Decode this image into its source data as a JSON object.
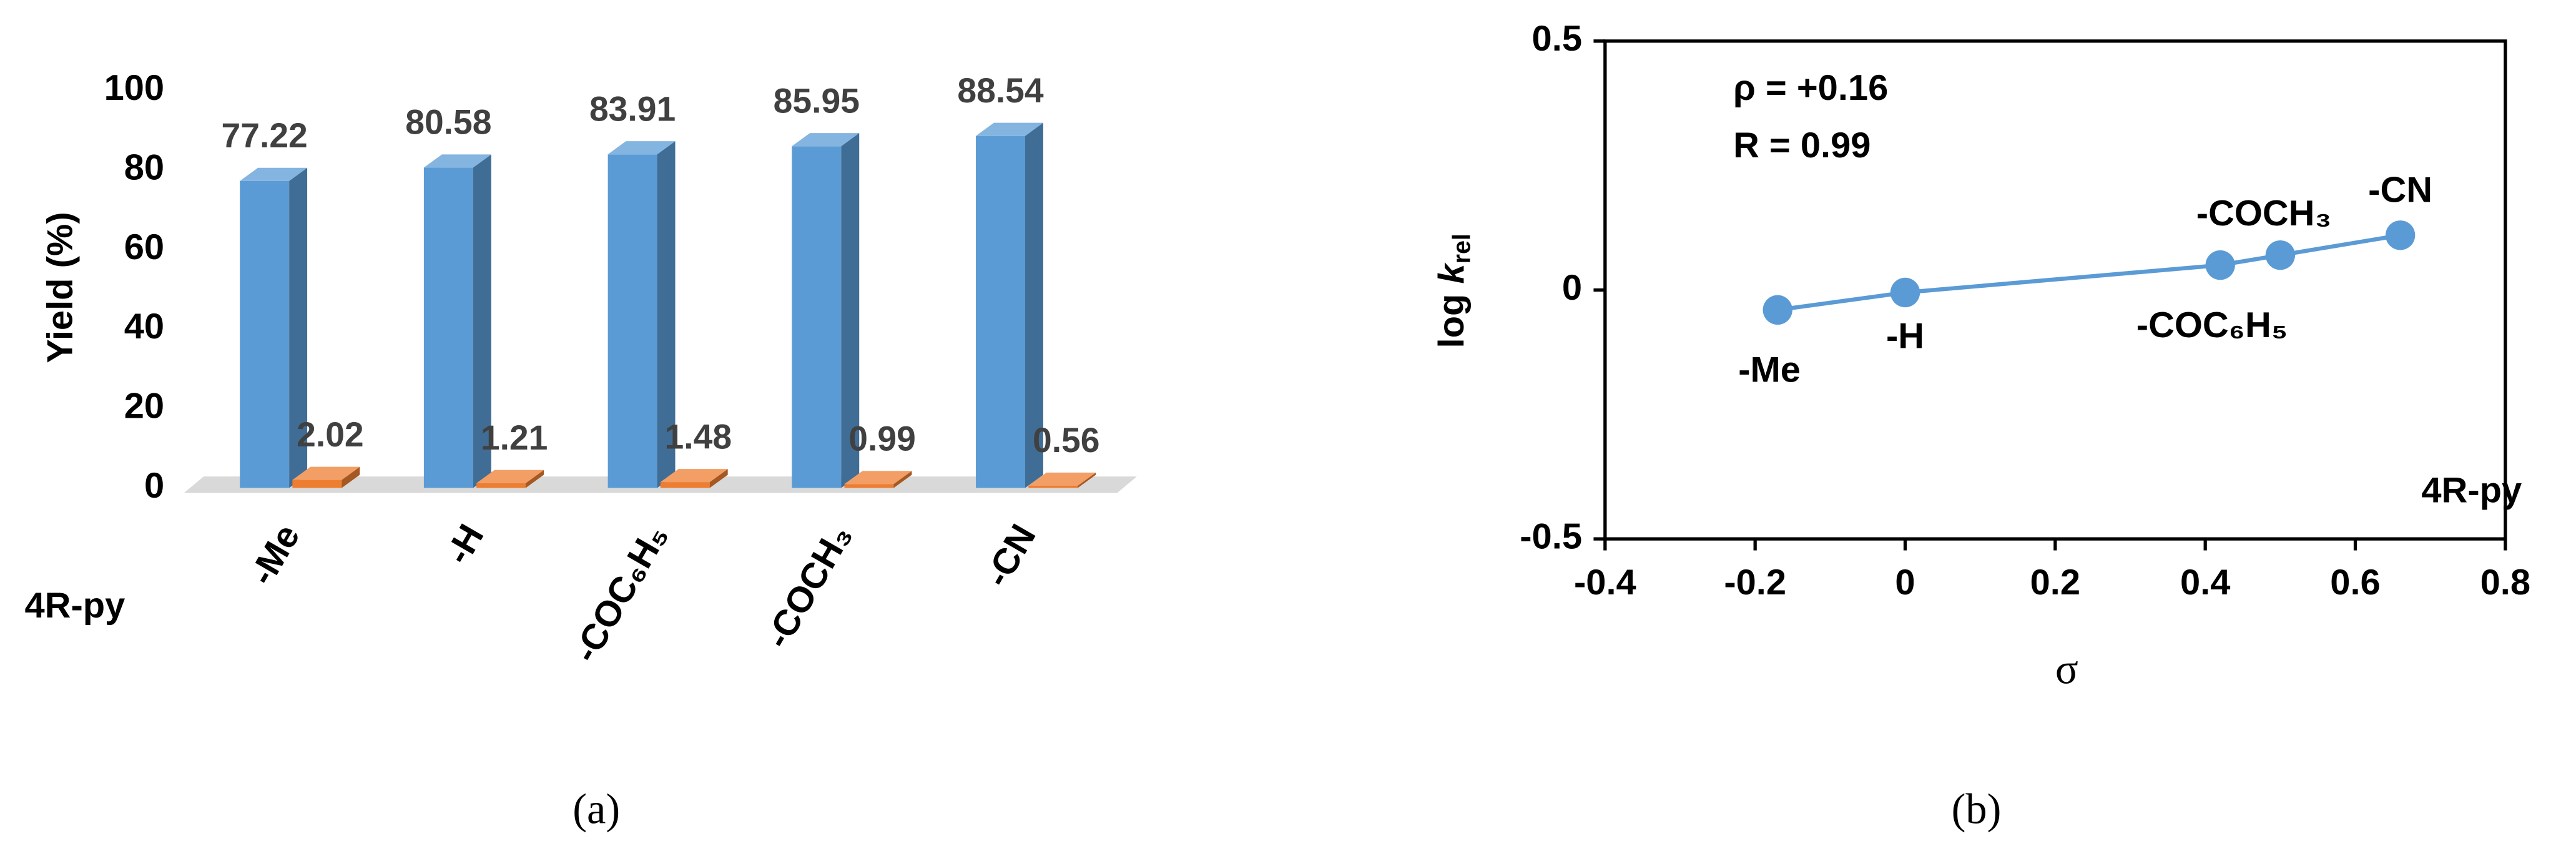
{
  "chart_data": [
    {
      "type": "bar3d",
      "y_label": "Yield (%)",
      "row_label": "4R-py",
      "caption": "(a)",
      "categories": [
        "-Me",
        "-H",
        "-COC₆H₅",
        "-COCH₃",
        "-CN"
      ],
      "series": [
        {
          "color": "#5b9bd5",
          "values": [
            77.22,
            80.58,
            83.91,
            85.95,
            88.54
          ]
        },
        {
          "color": "#ed7d31",
          "values": [
            2.02,
            1.21,
            1.48,
            0.99,
            0.56
          ]
        }
      ],
      "ylim": [
        0,
        100
      ],
      "yticks": [
        0,
        20,
        40,
        60,
        80,
        100
      ],
      "grid": false
    },
    {
      "type": "scatter",
      "caption": "(b)",
      "x_label": "σ",
      "y_label_parts": [
        "log ",
        "k",
        "rel"
      ],
      "annotations": [
        "ρ = +0.16",
        "R = 0.99",
        "4R-py"
      ],
      "point_labels": [
        "-Me",
        "-H",
        "-COC₆H₅",
        "-COCH₃",
        "-CN"
      ],
      "x": [
        -0.17,
        0,
        0.42,
        0.5,
        0.66
      ],
      "series": [
        {
          "color": "#5b9bd5",
          "values": [
            -0.04,
            -0.005,
            0.05,
            0.07,
            0.11
          ]
        }
      ],
      "xlim": [
        -0.4,
        0.8
      ],
      "xticks": [
        -0.4,
        -0.2,
        0,
        0.2,
        0.4,
        0.6,
        0.8
      ],
      "ylim": [
        -0.5,
        0.5
      ],
      "yticks": [
        -0.5,
        0,
        0.5
      ],
      "trend_line": true
    }
  ]
}
